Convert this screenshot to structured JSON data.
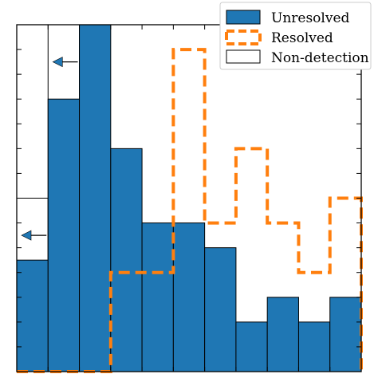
{
  "chart_data": {
    "type": "bar",
    "bins": 11,
    "ylim": [
      0,
      14
    ],
    "unresolved": [
      4.5,
      11,
      14,
      9,
      6,
      6,
      5,
      2,
      3,
      2,
      3
    ],
    "non_detection": [
      7,
      14,
      0,
      0,
      0,
      0,
      0,
      0,
      0,
      0,
      0
    ],
    "resolved": [
      0,
      0,
      0,
      4,
      4,
      13,
      6,
      9,
      6,
      4,
      7
    ],
    "upper_limit_arrows": [
      {
        "bin": 0,
        "value": 5.5
      },
      {
        "bin": 1,
        "value": 12.5
      }
    ],
    "colors": {
      "unresolved": "#1f77b4",
      "resolved": "#ff7f0e",
      "non_detection_edge": "#000000",
      "arrow": "#1f77b4"
    },
    "legend": {
      "position": "top-right",
      "entries": [
        {
          "label": "Unresolved",
          "style": "filled"
        },
        {
          "label": "Resolved",
          "style": "dashed"
        },
        {
          "label": "Non-detection",
          "style": "outline"
        }
      ]
    }
  }
}
